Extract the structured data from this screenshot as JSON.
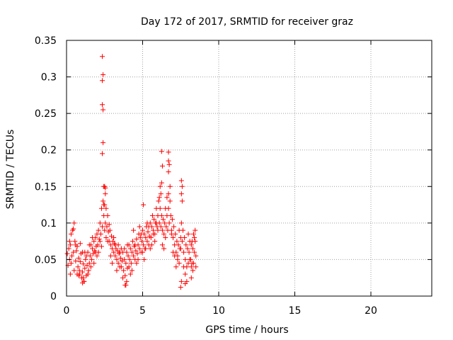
{
  "chart_data": {
    "type": "scatter",
    "title": "Day 172 of 2017, SRMTID for receiver graz",
    "xlabel": "GPS time / hours",
    "ylabel": "SRMTID / TECUs",
    "xlim": [
      0,
      24
    ],
    "ylim": [
      0,
      0.35
    ],
    "x_ticks": [
      0,
      5,
      10,
      15,
      20
    ],
    "x_tick_labels": [
      "0",
      "5",
      "10",
      "15",
      "20"
    ],
    "y_ticks": [
      0,
      0.05,
      0.1,
      0.15,
      0.2,
      0.25,
      0.3,
      0.35
    ],
    "y_tick_labels": [
      "0",
      "0.05",
      "0.1",
      "0.15",
      "0.2",
      "0.25",
      "0.3",
      "0.35"
    ],
    "grid": true,
    "marker": "plus",
    "series": [
      {
        "name": "SRMTID",
        "color": "#ff0000",
        "points": [
          [
            0.05,
            0.058
          ],
          [
            0.1,
            0.042
          ],
          [
            0.15,
            0.065
          ],
          [
            0.2,
            0.05
          ],
          [
            0.25,
            0.07
          ],
          [
            0.3,
            0.045
          ],
          [
            0.35,
            0.055
          ],
          [
            0.4,
            0.09
          ],
          [
            0.45,
            0.06
          ],
          [
            0.5,
            0.1
          ],
          [
            0.55,
            0.075
          ],
          [
            0.6,
            0.048
          ],
          [
            0.65,
            0.062
          ],
          [
            0.7,
            0.03
          ],
          [
            0.75,
            0.04
          ],
          [
            0.8,
            0.052
          ],
          [
            0.85,
            0.035
          ],
          [
            0.9,
            0.047
          ],
          [
            0.95,
            0.058
          ],
          [
            1.0,
            0.025
          ],
          [
            1.05,
            0.033
          ],
          [
            1.1,
            0.044
          ],
          [
            1.15,
            0.02
          ],
          [
            1.2,
            0.038
          ],
          [
            1.25,
            0.05
          ],
          [
            1.3,
            0.028
          ],
          [
            1.35,
            0.042
          ],
          [
            1.4,
            0.06
          ],
          [
            1.45,
            0.035
          ],
          [
            1.5,
            0.045
          ],
          [
            1.55,
            0.055
          ],
          [
            1.6,
            0.07
          ],
          [
            1.65,
            0.05
          ],
          [
            1.7,
            0.065
          ],
          [
            1.75,
            0.058
          ],
          [
            1.8,
            0.075
          ],
          [
            1.85,
            0.062
          ],
          [
            1.9,
            0.08
          ],
          [
            1.95,
            0.068
          ],
          [
            2.0,
            0.055
          ],
          [
            2.05,
            0.07
          ],
          [
            2.1,
            0.09
          ],
          [
            2.15,
            0.078
          ],
          [
            2.2,
            0.1
          ],
          [
            2.25,
            0.085
          ],
          [
            2.3,
            0.12
          ],
          [
            2.35,
            0.095
          ],
          [
            2.4,
            0.13
          ],
          [
            2.45,
            0.11
          ],
          [
            2.5,
            0.09
          ],
          [
            2.55,
            0.1
          ],
          [
            2.6,
            0.08
          ],
          [
            2.65,
            0.095
          ],
          [
            2.7,
            0.11
          ],
          [
            2.75,
            0.088
          ],
          [
            2.8,
            0.075
          ],
          [
            2.85,
            0.09
          ],
          [
            2.9,
            0.07
          ],
          [
            2.95,
            0.082
          ],
          [
            3.0,
            0.065
          ],
          [
            3.05,
            0.075
          ],
          [
            3.1,
            0.06
          ],
          [
            3.15,
            0.072
          ],
          [
            3.2,
            0.055
          ],
          [
            3.25,
            0.065
          ],
          [
            3.3,
            0.05
          ],
          [
            3.35,
            0.062
          ],
          [
            3.4,
            0.045
          ],
          [
            3.45,
            0.058
          ],
          [
            3.5,
            0.04
          ],
          [
            3.55,
            0.052
          ],
          [
            3.6,
            0.065
          ],
          [
            3.65,
            0.048
          ],
          [
            3.7,
            0.06
          ],
          [
            3.75,
            0.035
          ],
          [
            3.8,
            0.05
          ],
          [
            3.85,
            0.028
          ],
          [
            3.9,
            0.045
          ],
          [
            3.95,
            0.06
          ],
          [
            4.0,
            0.038
          ],
          [
            4.05,
            0.055
          ],
          [
            4.1,
            0.07
          ],
          [
            4.15,
            0.05
          ],
          [
            4.2,
            0.065
          ],
          [
            4.25,
            0.045
          ],
          [
            4.3,
            0.06
          ],
          [
            4.35,
            0.075
          ],
          [
            4.4,
            0.055
          ],
          [
            4.45,
            0.068
          ],
          [
            4.5,
            0.05
          ],
          [
            4.55,
            0.062
          ],
          [
            4.6,
            0.078
          ],
          [
            4.65,
            0.058
          ],
          [
            4.7,
            0.07
          ],
          [
            4.75,
            0.085
          ],
          [
            4.8,
            0.065
          ],
          [
            4.85,
            0.08
          ],
          [
            4.9,
            0.06
          ],
          [
            4.95,
            0.075
          ],
          [
            5.0,
            0.09
          ],
          [
            5.05,
            0.07
          ],
          [
            5.1,
            0.085
          ],
          [
            5.15,
            0.065
          ],
          [
            5.2,
            0.08
          ],
          [
            5.25,
            0.095
          ],
          [
            5.3,
            0.075
          ],
          [
            5.35,
            0.088
          ],
          [
            5.4,
            0.07
          ],
          [
            5.45,
            0.082
          ],
          [
            5.5,
            0.1
          ],
          [
            5.55,
            0.08
          ],
          [
            5.6,
            0.095
          ],
          [
            5.65,
            0.11
          ],
          [
            5.7,
            0.09
          ],
          [
            5.75,
            0.105
          ],
          [
            5.8,
            0.085
          ],
          [
            5.85,
            0.1
          ],
          [
            5.9,
            0.12
          ],
          [
            5.95,
            0.095
          ],
          [
            6.0,
            0.11
          ],
          [
            6.05,
            0.13
          ],
          [
            6.1,
            0.1
          ],
          [
            6.15,
            0.12
          ],
          [
            6.2,
            0.14
          ],
          [
            6.25,
            0.11
          ],
          [
            6.3,
            0.09
          ],
          [
            6.35,
            0.105
          ],
          [
            6.4,
            0.085
          ],
          [
            6.45,
            0.1
          ],
          [
            6.5,
            0.08
          ],
          [
            6.55,
            0.095
          ],
          [
            6.6,
            0.11
          ],
          [
            6.65,
            0.09
          ],
          [
            6.7,
            0.12
          ],
          [
            6.75,
            0.1
          ],
          [
            6.8,
            0.13
          ],
          [
            6.85,
            0.11
          ],
          [
            6.9,
            0.09
          ],
          [
            6.95,
            0.105
          ],
          [
            7.0,
            0.08
          ],
          [
            7.05,
            0.095
          ],
          [
            7.1,
            0.07
          ],
          [
            7.15,
            0.085
          ],
          [
            7.2,
            0.06
          ],
          [
            7.25,
            0.075
          ],
          [
            7.3,
            0.055
          ],
          [
            7.35,
            0.07
          ],
          [
            7.4,
            0.09
          ],
          [
            7.45,
            0.065
          ],
          [
            7.5,
            0.08
          ],
          [
            7.55,
            0.1
          ],
          [
            7.6,
            0.075
          ],
          [
            7.65,
            0.09
          ],
          [
            7.7,
            0.06
          ],
          [
            7.75,
            0.08
          ],
          [
            7.8,
            0.05
          ],
          [
            7.85,
            0.07
          ],
          [
            7.9,
            0.04
          ],
          [
            7.95,
            0.065
          ],
          [
            8.0,
            0.085
          ],
          [
            8.05,
            0.06
          ],
          [
            8.1,
            0.075
          ],
          [
            8.15,
            0.05
          ],
          [
            8.2,
            0.07
          ],
          [
            8.25,
            0.045
          ],
          [
            8.3,
            0.065
          ],
          [
            8.35,
            0.085
          ],
          [
            8.4,
            0.06
          ],
          [
            8.45,
            0.075
          ],
          [
            8.5,
            0.055
          ],
          [
            0.2,
            0.075
          ],
          [
            0.3,
            0.085
          ],
          [
            0.45,
            0.092
          ],
          [
            0.5,
            0.035
          ],
          [
            0.6,
            0.07
          ],
          [
            0.7,
            0.068
          ],
          [
            0.8,
            0.028
          ],
          [
            0.9,
            0.072
          ],
          [
            1.05,
            0.06
          ],
          [
            1.1,
            0.025
          ],
          [
            1.2,
            0.06
          ],
          [
            1.3,
            0.055
          ],
          [
            1.4,
            0.03
          ],
          [
            1.5,
            0.07
          ],
          [
            1.6,
            0.04
          ],
          [
            1.7,
            0.08
          ],
          [
            1.8,
            0.045
          ],
          [
            1.9,
            0.06
          ],
          [
            2.0,
            0.085
          ],
          [
            2.1,
            0.06
          ],
          [
            2.2,
            0.075
          ],
          [
            2.3,
            0.068
          ],
          [
            2.45,
            0.125
          ],
          [
            2.5,
            0.15
          ],
          [
            2.55,
            0.14
          ],
          [
            2.6,
            0.12
          ],
          [
            2.7,
            0.075
          ],
          [
            2.8,
            0.098
          ],
          [
            2.9,
            0.055
          ],
          [
            3.0,
            0.045
          ],
          [
            3.1,
            0.08
          ],
          [
            3.2,
            0.07
          ],
          [
            3.3,
            0.035
          ],
          [
            3.4,
            0.07
          ],
          [
            3.5,
            0.06
          ],
          [
            3.6,
            0.04
          ],
          [
            3.7,
            0.025
          ],
          [
            3.8,
            0.065
          ],
          [
            3.9,
            0.015
          ],
          [
            4.0,
            0.07
          ],
          [
            4.1,
            0.04
          ],
          [
            4.2,
            0.03
          ],
          [
            4.3,
            0.035
          ],
          [
            4.4,
            0.09
          ],
          [
            4.5,
            0.07
          ],
          [
            4.6,
            0.045
          ],
          [
            4.7,
            0.05
          ],
          [
            4.8,
            0.095
          ],
          [
            4.9,
            0.085
          ],
          [
            5.0,
            0.06
          ],
          [
            5.05,
            0.125
          ],
          [
            5.1,
            0.05
          ],
          [
            5.2,
            0.065
          ],
          [
            5.3,
            0.1
          ],
          [
            5.4,
            0.095
          ],
          [
            5.5,
            0.065
          ],
          [
            5.6,
            0.07
          ],
          [
            5.7,
            0.085
          ],
          [
            5.8,
            0.075
          ],
          [
            5.9,
            0.1
          ],
          [
            6.0,
            0.09
          ],
          [
            6.1,
            0.135
          ],
          [
            6.15,
            0.15
          ],
          [
            6.2,
            0.095
          ],
          [
            6.3,
            0.07
          ],
          [
            6.4,
            0.065
          ],
          [
            6.5,
            0.12
          ],
          [
            6.6,
            0.135
          ],
          [
            6.7,
            0.14
          ],
          [
            6.8,
            0.15
          ],
          [
            6.9,
            0.085
          ],
          [
            7.0,
            0.06
          ],
          [
            7.1,
            0.055
          ],
          [
            7.2,
            0.04
          ],
          [
            7.3,
            0.05
          ],
          [
            7.4,
            0.045
          ],
          [
            7.5,
            0.065
          ],
          [
            7.6,
            0.13
          ],
          [
            7.7,
            0.04
          ],
          [
            7.8,
            0.03
          ],
          [
            7.9,
            0.02
          ],
          [
            8.0,
            0.045
          ],
          [
            8.1,
            0.05
          ],
          [
            8.2,
            0.04
          ],
          [
            8.3,
            0.035
          ],
          [
            8.4,
            0.08
          ],
          [
            8.5,
            0.04
          ],
          [
            8.45,
            0.09
          ],
          [
            8.35,
            0.045
          ],
          [
            8.25,
            0.075
          ],
          [
            2.35,
            0.328
          ],
          [
            2.4,
            0.303
          ],
          [
            2.35,
            0.295
          ],
          [
            2.35,
            0.262
          ],
          [
            2.4,
            0.255
          ],
          [
            2.4,
            0.21
          ],
          [
            2.35,
            0.195
          ],
          [
            2.45,
            0.15
          ],
          [
            2.55,
            0.148
          ],
          [
            2.5,
            0.125
          ],
          [
            6.25,
            0.198
          ],
          [
            6.7,
            0.197
          ],
          [
            6.7,
            0.185
          ],
          [
            6.75,
            0.18
          ],
          [
            6.7,
            0.17
          ],
          [
            6.3,
            0.178
          ],
          [
            6.25,
            0.155
          ],
          [
            7.55,
            0.158
          ],
          [
            7.6,
            0.15
          ],
          [
            7.55,
            0.14
          ],
          [
            7.5,
            0.012
          ],
          [
            7.8,
            0.017
          ],
          [
            8.2,
            0.025
          ],
          [
            1.15,
            0.02
          ],
          [
            1.05,
            0.018
          ],
          [
            0.85,
            0.03
          ],
          [
            0.25,
            0.03
          ],
          [
            3.95,
            0.02
          ],
          [
            3.85,
            0.015
          ],
          [
            7.55,
            0.02
          ]
        ]
      }
    ]
  }
}
